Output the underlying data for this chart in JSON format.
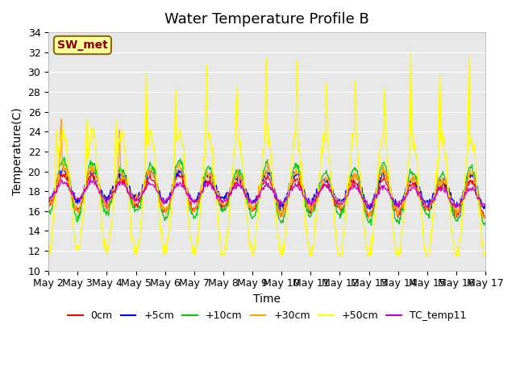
{
  "title": "Water Temperature Profile B",
  "xlabel": "Time",
  "ylabel": "Temperature(C)",
  "ylim": [
    10,
    34
  ],
  "yticks": [
    10,
    12,
    14,
    16,
    18,
    20,
    22,
    24,
    26,
    28,
    30,
    32,
    34
  ],
  "x_labels": [
    "May 2",
    "May 3",
    "May 4",
    "May 5",
    "May 6",
    "May 7",
    "May 8",
    "May 9",
    "May 10",
    "May 11",
    "May 12",
    "May 13",
    "May 14",
    "May 15",
    "May 16",
    "May 17"
  ],
  "annotation_text": "SW_met",
  "annotation_color": "#8B0000",
  "annotation_bg": "#FFFF99",
  "bg_color": "#E8E8E8",
  "line_colors": {
    "0cm": "#FF0000",
    "+5cm": "#0000FF",
    "+10cm": "#00CC00",
    "+30cm": "#FFA500",
    "+50cm": "#FFFF00",
    "TC_temp11": "#CC00CC"
  },
  "legend_order": [
    "0cm",
    "+5cm",
    "+10cm",
    "+30cm",
    "+50cm",
    "TC_temp11"
  ],
  "title_fontsize": 13,
  "axis_label_fontsize": 10,
  "tick_fontsize": 9
}
